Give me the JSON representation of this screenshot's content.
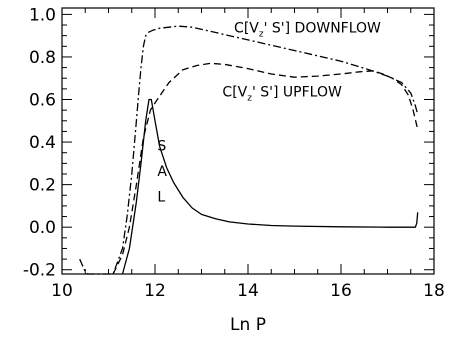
{
  "chart_data": {
    "type": "line",
    "title": "",
    "xlabel": "Ln P",
    "ylabel": "",
    "xlim": [
      10,
      18
    ],
    "ylim": [
      -0.22,
      1.03
    ],
    "xticks": [
      10,
      12,
      14,
      16,
      18
    ],
    "yticks": [
      -0.2,
      0.0,
      0.2,
      0.4,
      0.6,
      0.8,
      1.0
    ],
    "xtick_labels": [
      "10",
      "12",
      "14",
      "16",
      "18"
    ],
    "ytick_labels": [
      "-0.2",
      "0.0",
      "0.2",
      "0.4",
      "0.6",
      "0.8",
      "1.0"
    ],
    "grid": false,
    "series": [
      {
        "name": "",
        "style": "solid",
        "x": [
          11.3,
          11.45,
          11.6,
          11.7,
          11.8,
          11.87,
          11.92,
          12.0,
          12.1,
          12.25,
          12.4,
          12.6,
          12.8,
          13.0,
          13.3,
          13.6,
          14.0,
          14.5,
          15.0,
          16.0,
          17.0,
          17.6,
          17.63,
          17.65
        ],
        "y": [
          -0.22,
          -0.1,
          0.12,
          0.3,
          0.5,
          0.6,
          0.6,
          0.5,
          0.38,
          0.28,
          0.21,
          0.14,
          0.09,
          0.06,
          0.04,
          0.025,
          0.015,
          0.008,
          0.005,
          0.002,
          0.0,
          0.0,
          0.02,
          0.07
        ]
      },
      {
        "name": "C[Vz' S'] DOWNFLOW",
        "style": "dashdot",
        "x": [
          10.38,
          10.5,
          10.55,
          11.1,
          11.3,
          11.4,
          11.5,
          11.6,
          11.65,
          11.7,
          11.75,
          11.8,
          11.85,
          11.95,
          12.1,
          12.3,
          12.5,
          12.8,
          13.2,
          13.6,
          14.2,
          14.8,
          15.4,
          16.0,
          16.6,
          17.0,
          17.3,
          17.5,
          17.6,
          17.65
        ],
        "y": [
          -0.15,
          -0.21,
          -0.22,
          -0.22,
          -0.1,
          0.05,
          0.25,
          0.5,
          0.63,
          0.75,
          0.85,
          0.9,
          0.915,
          0.925,
          0.935,
          0.94,
          0.945,
          0.94,
          0.92,
          0.9,
          0.87,
          0.84,
          0.81,
          0.78,
          0.74,
          0.71,
          0.68,
          0.63,
          0.57,
          0.53
        ]
      },
      {
        "name": "C[Vz' S'] UPFLOW",
        "style": "dashed",
        "x": [
          11.1,
          11.3,
          11.45,
          11.6,
          11.75,
          11.9,
          12.05,
          12.3,
          12.6,
          12.9,
          13.2,
          13.5,
          14.0,
          14.5,
          15.0,
          15.5,
          16.0,
          16.4,
          16.7,
          16.9,
          17.1,
          17.3,
          17.45,
          17.55,
          17.65
        ],
        "y": [
          -0.22,
          -0.13,
          0.0,
          0.2,
          0.42,
          0.55,
          0.6,
          0.68,
          0.74,
          0.76,
          0.77,
          0.765,
          0.745,
          0.72,
          0.705,
          0.71,
          0.72,
          0.73,
          0.735,
          0.72,
          0.7,
          0.67,
          0.62,
          0.55,
          0.46
        ]
      }
    ],
    "annotations": [
      {
        "text_main": "C[V",
        "text_sub": "z",
        "text_rest": "' S'] DOWNFLOW",
        "x": 13.7,
        "y": 0.915
      },
      {
        "text_main": "C[V",
        "text_sub": "z",
        "text_rest": "' S'] UPFLOW",
        "x": 13.45,
        "y": 0.615
      }
    ],
    "sal_label": [
      "S",
      "A",
      "L"
    ]
  }
}
